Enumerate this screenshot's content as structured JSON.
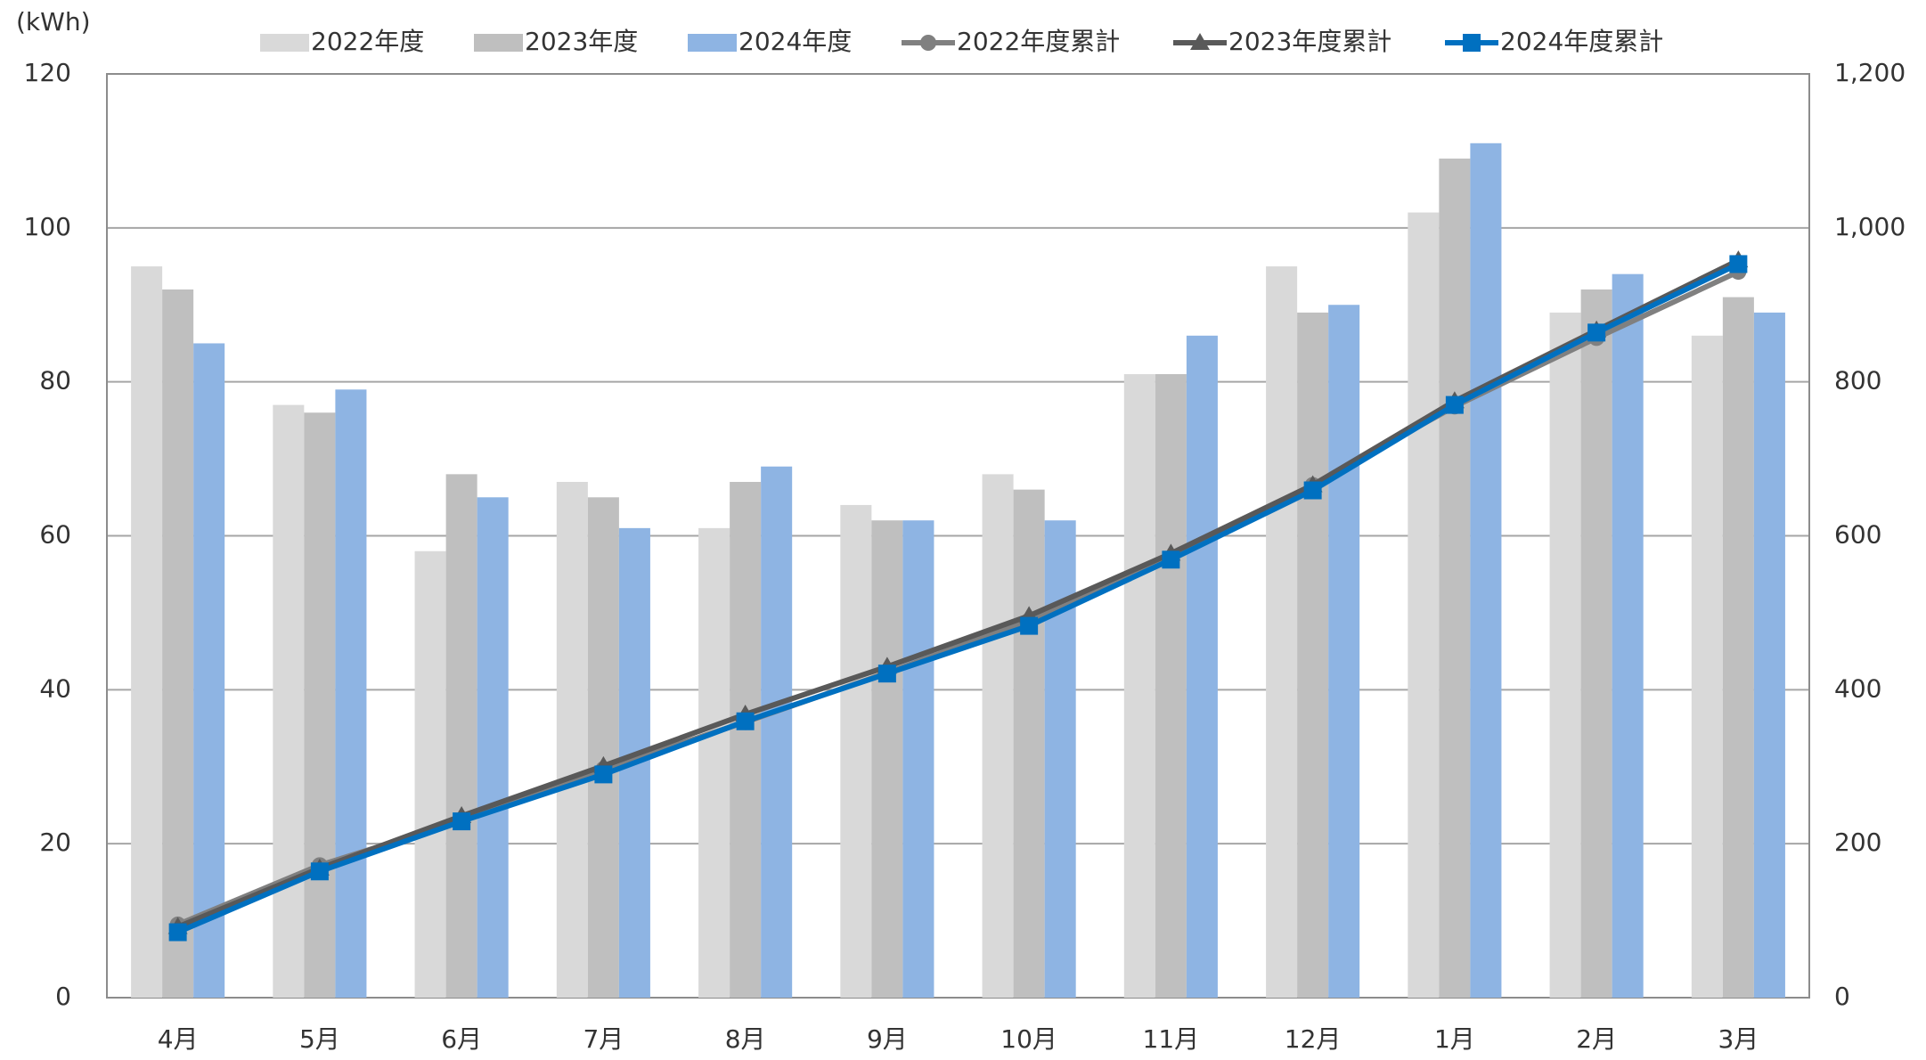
{
  "chart_data": {
    "type": "bar-line",
    "y_unit": "(kWh)",
    "categories": [
      "4月",
      "5月",
      "6月",
      "7月",
      "8月",
      "9月",
      "10月",
      "11月",
      "12月",
      "1月",
      "2月",
      "3月"
    ],
    "series": [
      {
        "name": "2022年度",
        "type": "bar",
        "color": "#d9d9d9",
        "values": [
          95,
          77,
          58,
          67,
          61,
          64,
          68,
          81,
          95,
          102,
          89,
          86
        ]
      },
      {
        "name": "2023年度",
        "type": "bar",
        "color": "#bfbfbf",
        "values": [
          92,
          76,
          68,
          65,
          67,
          62,
          66,
          81,
          89,
          109,
          92,
          91
        ]
      },
      {
        "name": "2024年度",
        "type": "bar",
        "color": "#8eb4e3",
        "values": [
          85,
          79,
          65,
          61,
          69,
          62,
          62,
          86,
          90,
          111,
          94,
          89
        ]
      },
      {
        "name": "2022年度累計",
        "type": "line",
        "axis": "y2",
        "marker": "circle",
        "color": "#808080",
        "values": [
          95,
          172,
          230,
          297,
          358,
          422,
          490,
          571,
          666,
          768,
          857,
          943
        ]
      },
      {
        "name": "2023年度累計",
        "type": "line",
        "axis": "y2",
        "marker": "triangle",
        "color": "#595959",
        "values": [
          92,
          168,
          236,
          301,
          368,
          430,
          496,
          577,
          666,
          775,
          867,
          958
        ]
      },
      {
        "name": "2024年度累計",
        "type": "line",
        "axis": "y2",
        "marker": "square",
        "color": "#0070c0",
        "values": [
          85,
          164,
          229,
          290,
          359,
          421,
          483,
          569,
          659,
          770,
          864,
          953
        ]
      }
    ],
    "ylim": [
      0,
      120
    ],
    "yticks": [
      0,
      20,
      40,
      60,
      80,
      100,
      120
    ],
    "y2lim": [
      0,
      1200
    ],
    "y2ticks": [
      0,
      200,
      400,
      600,
      800,
      {
        "value": 1000,
        "label": "1,000"
      },
      {
        "value": 1200,
        "label": "1,200"
      }
    ],
    "grid": true,
    "legend": "top"
  }
}
